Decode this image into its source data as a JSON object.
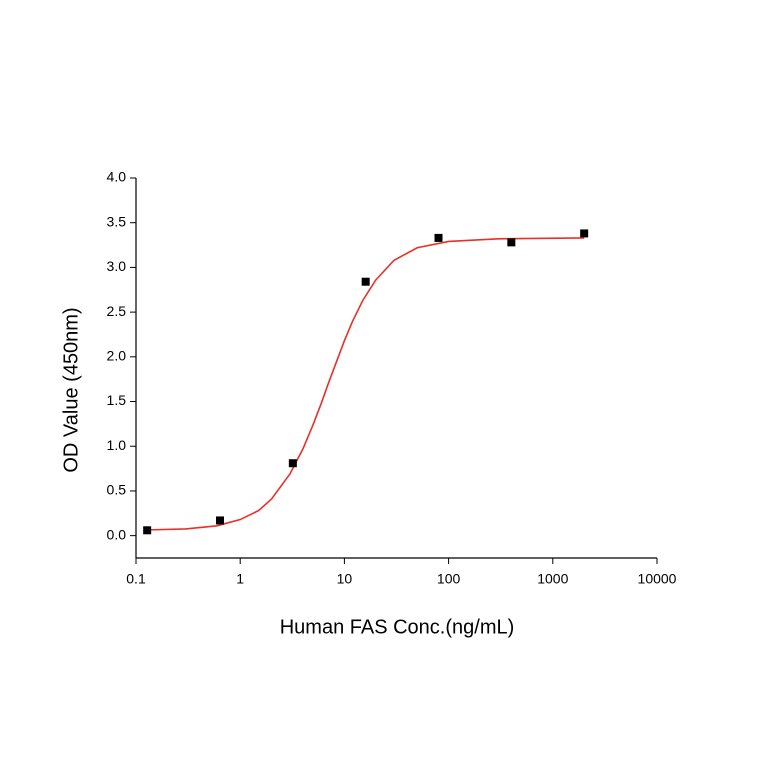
{
  "chart_data": {
    "type": "scatter",
    "xlabel": "Human FAS Conc.(ng/mL)",
    "ylabel": "OD Value (450nm)",
    "xscale": "log",
    "x": [
      0.128,
      0.64,
      3.2,
      16,
      80,
      400,
      2000
    ],
    "series": [
      {
        "color": "#000000",
        "values": [
          0.06,
          0.17,
          0.81,
          2.84,
          3.33,
          3.28,
          3.38
        ]
      }
    ],
    "fit": {
      "color": "#e8302a",
      "x": [
        0.12,
        0.3,
        0.6,
        1,
        1.5,
        2,
        3,
        4,
        5,
        6,
        7,
        8,
        10,
        12,
        15,
        20,
        30,
        50,
        100,
        300,
        2000
      ],
      "values": [
        0.063,
        0.075,
        0.11,
        0.18,
        0.28,
        0.41,
        0.69,
        0.97,
        1.24,
        1.48,
        1.7,
        1.88,
        2.18,
        2.4,
        2.63,
        2.86,
        3.08,
        3.22,
        3.29,
        3.32,
        3.33
      ]
    },
    "xlim": [
      0.1,
      10000
    ],
    "xticks": [
      0.1,
      1,
      10,
      100,
      1000,
      10000
    ],
    "ylim": [
      -0.25,
      4.0
    ],
    "yticks": [
      {
        "value": 0,
        "label": "0.0"
      },
      {
        "value": 0.5,
        "label": "0.5"
      },
      {
        "value": 1,
        "label": "1.0"
      },
      {
        "value": 1.5,
        "label": "1.5"
      },
      {
        "value": 2,
        "label": "2.0"
      },
      {
        "value": 2.5,
        "label": "2.5"
      },
      {
        "value": 3,
        "label": "3.0"
      },
      {
        "value": 3.5,
        "label": "3.5"
      },
      {
        "value": 4,
        "label": "4.0"
      }
    ]
  }
}
